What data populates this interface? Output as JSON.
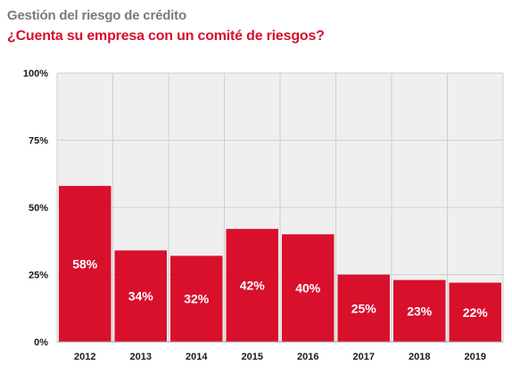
{
  "header": {
    "title": "Gestión del riesgo de crédito",
    "subtitle": "¿Cuenta su empresa con un comité de riesgos?"
  },
  "chart_data": {
    "type": "bar",
    "title": "Gestión del riesgo de crédito",
    "subtitle": "¿Cuenta su empresa con un comité de riesgos?",
    "categories": [
      "2012",
      "2013",
      "2014",
      "2015",
      "2016",
      "2017",
      "2018",
      "2019"
    ],
    "values": [
      58,
      34,
      32,
      42,
      40,
      25,
      23,
      22
    ],
    "data_labels": [
      "58%",
      "34%",
      "32%",
      "42%",
      "40%",
      "25%",
      "23%",
      "22%"
    ],
    "ylim": [
      0,
      100
    ],
    "yticks": [
      0,
      25,
      50,
      75,
      100
    ],
    "ytick_labels": [
      "0%",
      "25%",
      "50%",
      "75%",
      "100%"
    ],
    "xlabel": "",
    "ylabel": "",
    "grid": true,
    "bar_color": "#d8102c",
    "grid_color": "#cfcfcf",
    "plot_background": "#efefef"
  }
}
